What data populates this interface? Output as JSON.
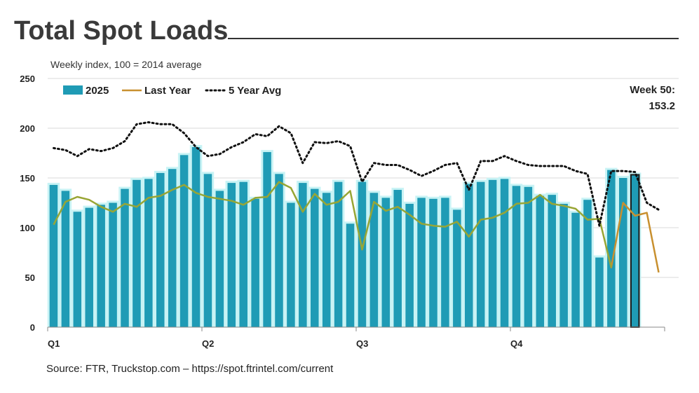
{
  "header": {
    "title": "Total Spot Loads",
    "subtitle": "Weekly index, 100 = 2014 average"
  },
  "footer": {
    "source": "Source: FTR, Truckstop.com – https://spot.ftrintel.com/current"
  },
  "callout": {
    "line1": "Week 50:",
    "line2": "153.2"
  },
  "colors": {
    "bar": "#1F9BB5",
    "bar_glow": "#C8F3F5",
    "highlight_bar": "#1F9BB5",
    "highlight_outline": "#1a1a1a",
    "last_year_line": "#C8902F",
    "last_year_alt": "#7DB33A",
    "five_year_line": "#111111",
    "grid": "#D9D9D9"
  },
  "chart_data": {
    "type": "bar",
    "title": "Total Spot Loads",
    "ylabel": "Weekly index, 100 = 2014 average",
    "ylim": [
      0,
      250
    ],
    "yticks": [
      0,
      50,
      100,
      150,
      200,
      250
    ],
    "quarter_labels": [
      {
        "label": "Q1",
        "week": 1
      },
      {
        "label": "Q2",
        "week": 14
      },
      {
        "label": "Q3",
        "week": 27
      },
      {
        "label": "Q4",
        "week": 40
      }
    ],
    "total_weeks": 52,
    "highlight_week": 50,
    "legend": [
      "2025",
      "Last Year",
      "5 Year Avg"
    ],
    "series": [
      {
        "name": "2025",
        "type": "bar",
        "values": [
          143,
          137,
          116,
          120,
          123,
          125,
          139,
          148,
          149,
          155,
          159,
          173,
          181,
          154,
          137,
          145,
          146,
          129,
          176,
          154,
          125,
          145,
          139,
          135,
          146,
          104,
          146,
          135,
          130,
          138,
          124,
          130,
          129,
          130,
          118,
          144,
          146,
          148,
          149,
          142,
          141,
          132,
          133,
          124,
          115,
          128,
          70,
          158,
          150,
          153.2
        ]
      },
      {
        "name": "Last Year",
        "type": "line",
        "values": [
          103,
          126,
          131,
          128,
          121,
          116,
          124,
          121,
          130,
          132,
          138,
          143,
          135,
          131,
          129,
          127,
          123,
          130,
          131,
          146,
          140,
          116,
          134,
          123,
          126,
          137,
          78,
          126,
          117,
          121,
          113,
          104,
          102,
          101,
          106,
          91,
          108,
          110,
          115,
          124,
          125,
          133,
          124,
          122,
          119,
          108,
          109,
          60,
          125,
          112,
          115,
          55
        ]
      },
      {
        "name": "5 Year Avg",
        "type": "line",
        "values": [
          180,
          178,
          172,
          179,
          177,
          180,
          187,
          204,
          206,
          204,
          204,
          195,
          181,
          172,
          174,
          181,
          186,
          194,
          192,
          202,
          195,
          165,
          186,
          185,
          187,
          182,
          146,
          165,
          163,
          163,
          158,
          152,
          157,
          163,
          165,
          138,
          167,
          167,
          172,
          167,
          163,
          162,
          162,
          162,
          157,
          154,
          102,
          157,
          157,
          156,
          125,
          118
        ]
      }
    ]
  }
}
